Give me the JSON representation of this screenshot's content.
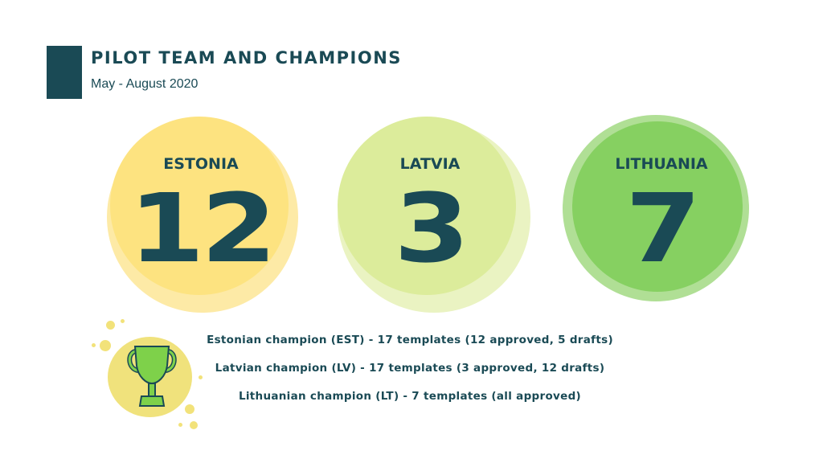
{
  "header": {
    "title": "PILOT TEAM AND CHAMPIONS",
    "subtitle": "May - August 2020"
  },
  "countries": [
    {
      "name": "ESTONIA",
      "count": "12",
      "halo_color": "#fde89a",
      "core_color": "#fde17a"
    },
    {
      "name": "LATVIA",
      "count": "3",
      "halo_color": "#e6f0b4",
      "core_color": "#d9ea91"
    },
    {
      "name": "LITHUANIA",
      "count": "7",
      "halo_color": "#a9dc8c",
      "core_color": "#86d061"
    }
  ],
  "champions": [
    "Estonian champion (EST) - 17 templates (12 approved, 5 drafts)",
    "Latvian champion (LV) - 17 templates (3 approved, 12 drafts)",
    "Lithuanian champion (LT) - 7 templates (all approved)"
  ],
  "colors": {
    "primary": "#1a4a55",
    "trophy_green": "#7ed14a",
    "trophy_bg": "#f0e27c"
  },
  "icons": {
    "trophy": "trophy-icon"
  }
}
